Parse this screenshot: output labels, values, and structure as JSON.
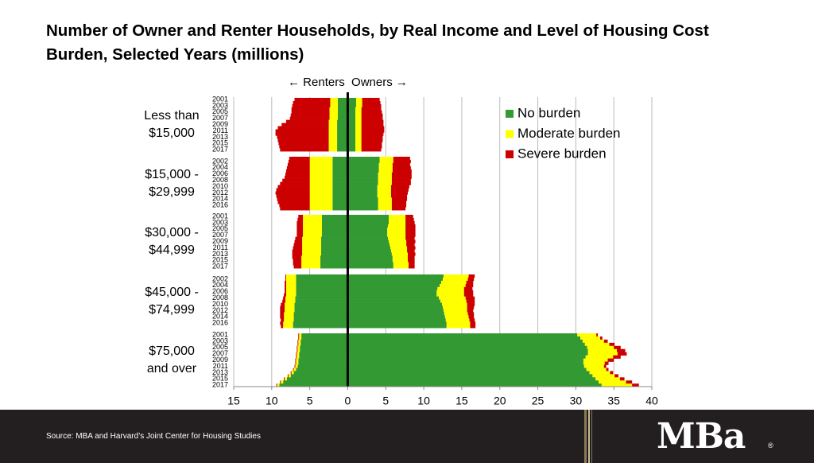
{
  "chart_data": {
    "type": "diverging_stacked_bar",
    "title": "Number of Owner and Renter Households, by Real Income and Level of Housing Cost Burden, Selected Years (millions)",
    "annotation": "← Renters  Owners →",
    "xlim": [
      -15,
      40
    ],
    "xticks": [
      {
        "value": -15,
        "label": "15"
      },
      {
        "value": -10,
        "label": "10"
      },
      {
        "value": -5,
        "label": "5"
      },
      0,
      5,
      10,
      15,
      20,
      25,
      30,
      35,
      40
    ],
    "grid": true,
    "series": [
      {
        "name": "No burden",
        "color": "#339933"
      },
      {
        "name": "Moderate burden",
        "color": "#ffff00"
      },
      {
        "name": "Severe burden",
        "color": "#cc0000"
      }
    ],
    "groups": [
      {
        "label": [
          "Less than",
          "$15,000"
        ],
        "years": [
          2001,
          null,
          2003,
          null,
          2005,
          null,
          2007,
          null,
          2009,
          null,
          2011,
          null,
          2013,
          null,
          2015,
          null,
          2017
        ],
        "renters": [
          [
            -1.3,
            -1.3,
            -1.3,
            -1.3,
            -1.3,
            -1.3,
            -1.3,
            -1.4,
            -1.4,
            -1.4,
            -1.4,
            -1.4,
            -1.4,
            -1.4,
            -1.4,
            -1.4,
            -1.4
          ],
          [
            -1.0,
            -1.0,
            -1.0,
            -1.1,
            -1.1,
            -1.1,
            -1.1,
            -1.1,
            -1.1,
            -1.1,
            -1.1,
            -1.1,
            -1.1,
            -1.1,
            -1.1,
            -1.1,
            -1.1
          ],
          [
            -4.7,
            -4.9,
            -5.0,
            -5.0,
            -5.0,
            -5.1,
            -5.2,
            -5.6,
            -6.2,
            -6.7,
            -7.0,
            -7.0,
            -6.8,
            -6.7,
            -6.6,
            -6.5,
            -6.4
          ]
        ],
        "owners": [
          [
            1.1,
            1.1,
            1.1,
            1.0,
            1.0,
            1.0,
            1.0,
            1.0,
            1.0,
            1.0,
            1.0,
            1.0,
            1.0,
            1.0,
            1.0,
            1.0,
            1.0
          ],
          [
            0.8,
            0.8,
            0.8,
            0.8,
            0.8,
            0.8,
            0.8,
            0.8,
            0.8,
            0.8,
            0.8,
            0.8,
            0.8,
            0.8,
            0.8,
            0.8,
            0.8
          ],
          [
            2.3,
            2.4,
            2.5,
            2.6,
            2.7,
            2.8,
            2.8,
            2.9,
            2.9,
            3.0,
            3.0,
            2.9,
            2.8,
            2.8,
            2.7,
            2.7,
            2.6
          ]
        ]
      },
      {
        "label": [
          "$15,000 -",
          "$29,999"
        ],
        "years": [
          null,
          2002,
          null,
          2004,
          null,
          2006,
          null,
          2008,
          null,
          2010,
          null,
          2012,
          null,
          2014,
          null,
          2016,
          null
        ],
        "renters": [
          [
            -2.0,
            -2.0,
            -2.0,
            -2.0,
            -2.0,
            -2.0,
            -2.0,
            -2.0,
            -2.0,
            -2.0,
            -2.0,
            -2.0,
            -2.0,
            -2.0,
            -2.0,
            -2.0,
            -2.0
          ],
          [
            -3.0,
            -3.0,
            -3.0,
            -3.0,
            -3.0,
            -3.0,
            -3.0,
            -3.0,
            -3.0,
            -3.0,
            -3.0,
            -3.0,
            -3.0,
            -3.0,
            -3.0,
            -3.0,
            -3.0
          ],
          [
            -2.7,
            -2.8,
            -2.9,
            -3.0,
            -3.1,
            -3.2,
            -3.3,
            -3.6,
            -3.9,
            -4.2,
            -4.4,
            -4.5,
            -4.4,
            -4.3,
            -4.2,
            -4.0,
            -3.9
          ]
        ],
        "owners": [
          [
            4.2,
            4.2,
            4.1,
            4.1,
            4.1,
            4.0,
            4.0,
            4.0,
            4.0,
            3.9,
            3.9,
            3.9,
            3.9,
            4.0,
            4.0,
            4.0,
            4.0
          ],
          [
            1.8,
            1.8,
            1.8,
            1.8,
            1.8,
            1.8,
            1.8,
            1.8,
            1.8,
            1.8,
            1.8,
            1.8,
            1.8,
            1.8,
            1.8,
            1.8,
            1.8
          ],
          [
            2.2,
            2.3,
            2.3,
            2.4,
            2.5,
            2.6,
            2.6,
            2.5,
            2.5,
            2.4,
            2.3,
            2.2,
            2.1,
            2.0,
            1.9,
            1.9,
            1.8
          ]
        ]
      },
      {
        "label": [
          "$30,000 -",
          "$44,999"
        ],
        "years": [
          2001,
          null,
          2003,
          null,
          2005,
          null,
          2007,
          null,
          2009,
          null,
          2011,
          null,
          2013,
          null,
          2015,
          null,
          2017
        ],
        "renters": [
          [
            -3.4,
            -3.4,
            -3.4,
            -3.4,
            -3.4,
            -3.4,
            -3.4,
            -3.5,
            -3.5,
            -3.5,
            -3.5,
            -3.5,
            -3.5,
            -3.6,
            -3.6,
            -3.6,
            -3.6
          ],
          [
            -2.5,
            -2.5,
            -2.5,
            -2.5,
            -2.5,
            -2.5,
            -2.5,
            -2.5,
            -2.5,
            -2.5,
            -2.5,
            -2.5,
            -2.5,
            -2.5,
            -2.5,
            -2.5,
            -2.5
          ],
          [
            -0.6,
            -0.7,
            -0.8,
            -0.8,
            -0.8,
            -0.8,
            -0.8,
            -0.9,
            -1.0,
            -1.1,
            -1.2,
            -1.3,
            -1.3,
            -1.2,
            -1.1,
            -1.1,
            -1.0
          ]
        ],
        "owners": [
          [
            5.4,
            5.4,
            5.4,
            5.3,
            5.2,
            5.2,
            5.2,
            5.3,
            5.4,
            5.5,
            5.6,
            5.7,
            5.8,
            5.9,
            5.9,
            6.0,
            6.0
          ],
          [
            2.2,
            2.2,
            2.2,
            2.3,
            2.4,
            2.4,
            2.4,
            2.3,
            2.3,
            2.2,
            2.2,
            2.1,
            2.1,
            2.0,
            2.0,
            2.0,
            2.0
          ],
          [
            1.0,
            1.1,
            1.2,
            1.3,
            1.3,
            1.3,
            1.3,
            1.2,
            1.2,
            1.1,
            1.1,
            1.0,
            1.0,
            0.9,
            0.9,
            0.8,
            0.8
          ]
        ]
      },
      {
        "label": [
          "$45,000 -",
          "$74,999"
        ],
        "years": [
          null,
          2002,
          null,
          2004,
          null,
          2006,
          null,
          2008,
          null,
          2010,
          null,
          2012,
          null,
          2014,
          null,
          2016,
          null
        ],
        "renters": [
          [
            -6.8,
            -6.8,
            -6.8,
            -6.8,
            -6.8,
            -6.8,
            -6.8,
            -6.9,
            -6.9,
            -7.0,
            -7.0,
            -7.0,
            -7.1,
            -7.1,
            -7.1,
            -7.2,
            -7.2
          ],
          [
            -1.3,
            -1.3,
            -1.3,
            -1.3,
            -1.3,
            -1.3,
            -1.3,
            -1.3,
            -1.3,
            -1.3,
            -1.3,
            -1.3,
            -1.3,
            -1.3,
            -1.3,
            -1.3,
            -1.3
          ],
          [
            -0.1,
            -0.1,
            -0.2,
            -0.2,
            -0.2,
            -0.2,
            -0.3,
            -0.3,
            -0.4,
            -0.5,
            -0.6,
            -0.6,
            -0.5,
            -0.5,
            -0.4,
            -0.4,
            -0.3
          ]
        ],
        "owners": [
          [
            12.6,
            12.5,
            12.3,
            12.1,
            11.8,
            11.7,
            11.7,
            12.0,
            12.2,
            12.4,
            12.5,
            12.6,
            12.7,
            12.8,
            12.9,
            13.0,
            13.0
          ],
          [
            3.3,
            3.3,
            3.3,
            3.4,
            3.5,
            3.6,
            3.6,
            3.5,
            3.4,
            3.3,
            3.2,
            3.1,
            3.1,
            3.1,
            3.1,
            3.1,
            3.1
          ],
          [
            0.8,
            0.8,
            0.9,
            1.0,
            1.1,
            1.2,
            1.2,
            1.2,
            1.1,
            1.0,
            0.9,
            0.8,
            0.8,
            0.7,
            0.7,
            0.7,
            0.7
          ]
        ]
      },
      {
        "label": [
          "$75,000",
          "and over"
        ],
        "years": [
          2001,
          null,
          2003,
          null,
          2005,
          null,
          2007,
          null,
          2009,
          null,
          2011,
          null,
          2013,
          null,
          2015,
          null,
          2017
        ],
        "renters": [
          [
            -6.1,
            -6.1,
            -6.2,
            -6.2,
            -6.3,
            -6.3,
            -6.4,
            -6.4,
            -6.5,
            -6.5,
            -6.6,
            -6.8,
            -7.1,
            -7.5,
            -8.0,
            -8.5,
            -9.0
          ],
          [
            -0.3,
            -0.3,
            -0.3,
            -0.3,
            -0.3,
            -0.3,
            -0.3,
            -0.3,
            -0.3,
            -0.3,
            -0.3,
            -0.3,
            -0.3,
            -0.3,
            -0.3,
            -0.3,
            -0.3
          ],
          [
            -0.1,
            -0.1,
            -0.1,
            -0.1,
            -0.1,
            -0.1,
            -0.1,
            -0.1,
            -0.1,
            -0.1,
            -0.1,
            -0.1,
            -0.1,
            -0.1,
            -0.1,
            -0.1,
            -0.1
          ]
        ],
        "owners": [
          [
            30.2,
            30.6,
            30.9,
            31.2,
            31.5,
            31.6,
            31.6,
            31.3,
            31.0,
            31.0,
            31.1,
            31.4,
            31.8,
            32.2,
            32.6,
            33.0,
            33.4
          ],
          [
            2.5,
            2.6,
            2.8,
            3.2,
            3.5,
            3.8,
            3.9,
            3.6,
            3.2,
            2.8,
            2.6,
            2.6,
            2.7,
            2.9,
            3.2,
            3.6,
            4.0
          ],
          [
            0.2,
            0.3,
            0.5,
            0.7,
            0.9,
            1.1,
            1.2,
            1.0,
            0.8,
            0.5,
            0.3,
            0.3,
            0.4,
            0.5,
            0.6,
            0.8,
            0.9
          ]
        ]
      }
    ]
  },
  "footer": {
    "source": "Source: MBA and Harvard’s Joint Center for Housing Studies",
    "logo": "MBa",
    "mark": "®"
  }
}
